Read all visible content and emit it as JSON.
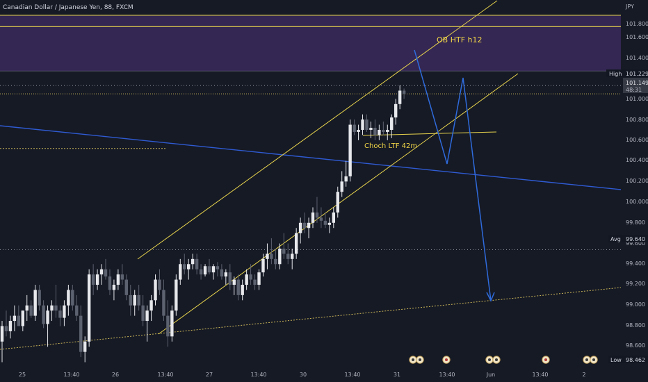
{
  "header": {
    "symbol_title": "Canadian Dollar / Japanese Yen, 88, FXCM"
  },
  "chart_data": {
    "type": "candlestick",
    "currency": "JPY",
    "y_axis": {
      "ticks": [
        "101.800",
        "101.600",
        "101.400",
        "101.000",
        "100.800",
        "100.600",
        "100.400",
        "100.200",
        "100.000",
        "99.800",
        "99.600",
        "99.400",
        "99.200",
        "99.000",
        "98.800",
        "98.600"
      ],
      "range": [
        98.54,
        101.95
      ]
    },
    "x_axis": {
      "ticks": [
        "25",
        "13:40",
        "26",
        "13:40",
        "27",
        "13:40",
        "30",
        "13:40",
        "31",
        "13:40",
        "Jun",
        "13:40",
        "2"
      ]
    },
    "price_labels": [
      {
        "tag": "High",
        "value": "101.229",
        "color": "#131722"
      },
      {
        "tag": "",
        "value": "101.149",
        "sub": "48:31",
        "color": "#2a2e39"
      },
      {
        "tag": "Avg",
        "value": "99.640",
        "color": "#131722"
      },
      {
        "tag": "Low",
        "value": "98.462",
        "color": "#131722"
      }
    ],
    "zones": [
      {
        "name": "OB HTF h12",
        "top": 101.91,
        "bottom": 101.37,
        "color": "#3a2a5c"
      }
    ],
    "annotations": [
      "OB HTF h12",
      "Choch LTF 42m"
    ],
    "candles": [
      [
        98.75,
        98.95,
        98.55,
        98.9
      ],
      [
        98.9,
        99.05,
        98.8,
        98.85
      ],
      [
        98.85,
        99.0,
        98.78,
        98.95
      ],
      [
        98.95,
        99.1,
        98.85,
        99.0
      ],
      [
        99.0,
        99.1,
        98.9,
        98.9
      ],
      [
        98.9,
        99.05,
        98.85,
        99.05
      ],
      [
        99.05,
        99.2,
        98.95,
        99.1
      ],
      [
        99.1,
        99.15,
        98.98,
        99.0
      ],
      [
        99.0,
        99.3,
        98.95,
        99.25
      ],
      [
        99.25,
        99.3,
        99.05,
        99.1
      ],
      [
        99.1,
        99.15,
        98.88,
        98.92
      ],
      [
        98.92,
        99.1,
        98.7,
        99.05
      ],
      [
        99.05,
        99.15,
        98.95,
        99.1
      ],
      [
        99.1,
        99.3,
        98.98,
        99.05
      ],
      [
        99.05,
        99.1,
        98.9,
        98.98
      ],
      [
        98.98,
        99.15,
        98.9,
        99.1
      ],
      [
        99.1,
        99.3,
        99.0,
        99.25
      ],
      [
        99.25,
        99.3,
        99.05,
        99.1
      ],
      [
        99.1,
        99.2,
        98.95,
        99.0
      ],
      [
        99.0,
        99.1,
        98.6,
        98.65
      ],
      [
        98.65,
        98.8,
        98.55,
        98.75
      ],
      [
        98.75,
        99.45,
        98.7,
        99.4
      ],
      [
        99.4,
        99.5,
        99.2,
        99.3
      ],
      [
        99.3,
        99.45,
        99.25,
        99.4
      ],
      [
        99.4,
        99.5,
        99.3,
        99.45
      ],
      [
        99.45,
        99.55,
        99.35,
        99.38
      ],
      [
        99.38,
        99.45,
        99.2,
        99.25
      ],
      [
        99.25,
        99.35,
        99.15,
        99.3
      ],
      [
        99.3,
        99.45,
        99.25,
        99.4
      ],
      [
        99.4,
        99.5,
        99.3,
        99.35
      ],
      [
        99.35,
        99.4,
        99.15,
        99.2
      ],
      [
        99.2,
        99.3,
        99.0,
        99.1
      ],
      [
        99.1,
        99.25,
        99.0,
        99.2
      ],
      [
        99.2,
        99.3,
        99.05,
        99.1
      ],
      [
        99.1,
        99.2,
        98.9,
        98.95
      ],
      [
        98.95,
        99.1,
        98.75,
        99.05
      ],
      [
        99.05,
        99.2,
        98.95,
        99.15
      ],
      [
        99.15,
        99.4,
        99.1,
        99.35
      ],
      [
        99.35,
        99.45,
        99.2,
        99.25
      ],
      [
        99.25,
        99.35,
        98.95,
        99.0
      ],
      [
        99.0,
        99.15,
        98.7,
        98.8
      ],
      [
        98.8,
        99.1,
        98.75,
        99.05
      ],
      [
        99.05,
        99.4,
        99.0,
        99.35
      ],
      [
        99.35,
        99.55,
        99.3,
        99.5
      ],
      [
        99.5,
        99.6,
        99.4,
        99.45
      ],
      [
        99.45,
        99.55,
        99.35,
        99.5
      ],
      [
        99.5,
        99.6,
        99.45,
        99.55
      ],
      [
        99.55,
        99.6,
        99.4,
        99.45
      ],
      [
        99.45,
        99.5,
        99.35,
        99.4
      ],
      [
        99.4,
        99.5,
        99.38,
        99.48
      ],
      [
        99.48,
        99.55,
        99.4,
        99.42
      ],
      [
        99.42,
        99.5,
        99.35,
        99.48
      ],
      [
        99.48,
        99.52,
        99.38,
        99.45
      ],
      [
        99.45,
        99.5,
        99.35,
        99.38
      ],
      [
        99.38,
        99.45,
        99.3,
        99.42
      ],
      [
        99.42,
        99.5,
        99.25,
        99.3
      ],
      [
        99.3,
        99.38,
        99.2,
        99.35
      ],
      [
        99.35,
        99.4,
        99.15,
        99.2
      ],
      [
        99.2,
        99.35,
        99.15,
        99.3
      ],
      [
        99.3,
        99.45,
        99.25,
        99.4
      ],
      [
        99.4,
        99.5,
        99.3,
        99.35
      ],
      [
        99.35,
        99.4,
        99.25,
        99.3
      ],
      [
        99.3,
        99.45,
        99.25,
        99.42
      ],
      [
        99.42,
        99.6,
        99.38,
        99.55
      ],
      [
        99.55,
        99.7,
        99.45,
        99.6
      ],
      [
        99.6,
        99.75,
        99.5,
        99.55
      ],
      [
        99.55,
        99.65,
        99.45,
        99.5
      ],
      [
        99.5,
        99.7,
        99.45,
        99.65
      ],
      [
        99.65,
        99.8,
        99.55,
        99.6
      ],
      [
        99.6,
        99.7,
        99.5,
        99.55
      ],
      [
        99.55,
        99.65,
        99.45,
        99.6
      ],
      [
        99.6,
        99.85,
        99.55,
        99.8
      ],
      [
        99.8,
        99.95,
        99.7,
        99.9
      ],
      [
        99.9,
        100.0,
        99.8,
        99.85
      ],
      [
        99.85,
        99.95,
        99.75,
        99.9
      ],
      [
        99.9,
        100.05,
        99.85,
        100.0
      ],
      [
        100.0,
        100.15,
        99.9,
        99.95
      ],
      [
        99.95,
        100.05,
        99.85,
        99.92
      ],
      [
        99.92,
        100.0,
        99.85,
        99.88
      ],
      [
        99.88,
        99.95,
        99.8,
        99.9
      ],
      [
        99.9,
        100.05,
        99.85,
        100.0
      ],
      [
        100.0,
        100.25,
        99.95,
        100.2
      ],
      [
        100.2,
        100.4,
        100.15,
        100.3
      ],
      [
        100.3,
        100.5,
        100.25,
        100.35
      ],
      [
        100.35,
        100.9,
        100.3,
        100.85
      ],
      [
        100.85,
        100.9,
        100.75,
        100.78
      ],
      [
        100.78,
        100.85,
        100.7,
        100.8
      ],
      [
        100.8,
        100.95,
        100.75,
        100.9
      ],
      [
        100.9,
        100.95,
        100.78,
        100.8
      ],
      [
        100.8,
        100.88,
        100.72,
        100.82
      ],
      [
        100.82,
        100.9,
        100.7,
        100.75
      ],
      [
        100.75,
        100.85,
        100.7,
        100.8
      ],
      [
        100.8,
        100.88,
        100.75,
        100.78
      ],
      [
        100.78,
        100.85,
        100.7,
        100.8
      ],
      [
        100.8,
        100.95,
        100.72,
        100.92
      ],
      [
        100.92,
        101.1,
        100.85,
        101.05
      ],
      [
        101.05,
        101.23,
        101.0,
        101.18
      ],
      [
        101.18,
        101.2,
        101.1,
        101.15
      ]
    ]
  },
  "events": [
    "dual",
    "single",
    "dual",
    "single",
    "dual"
  ]
}
